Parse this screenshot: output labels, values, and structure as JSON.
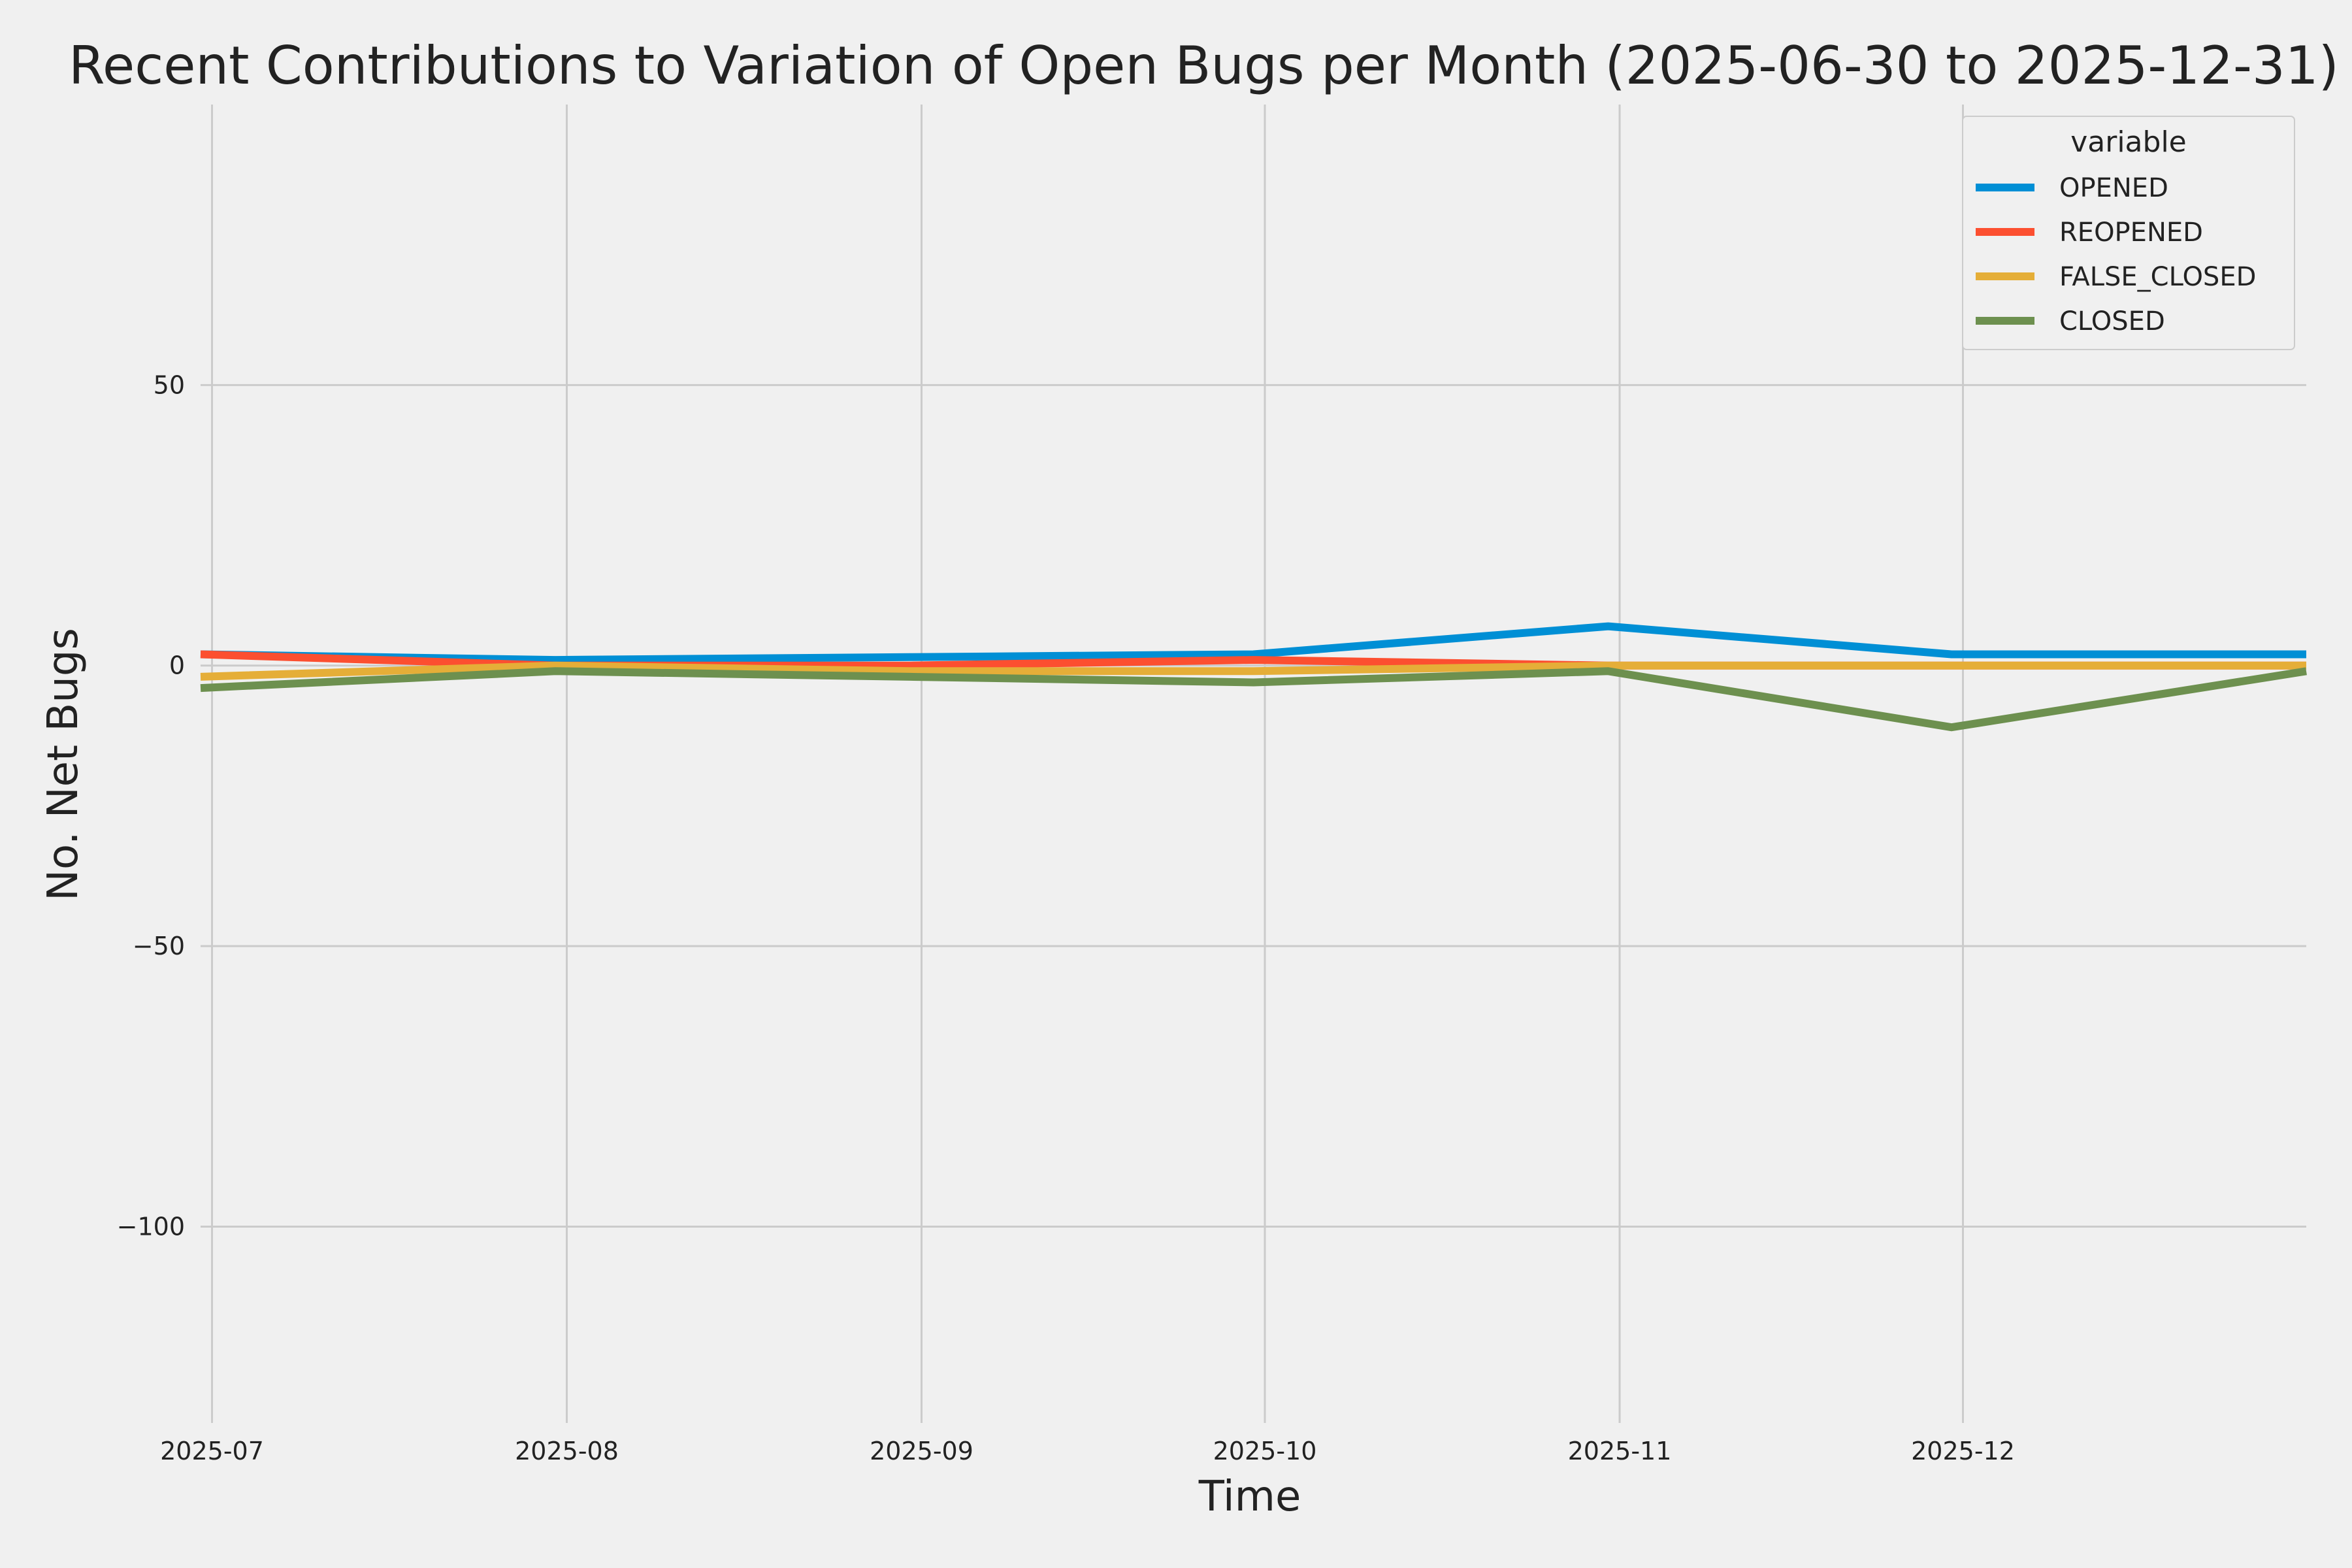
{
  "chart_data": {
    "type": "line",
    "title": "Recent Contributions to Variation of Open Bugs per Month (2025-06-30 to 2025-12-31)",
    "xlabel": "Time",
    "ylabel": "No. Net Bugs",
    "x": [
      "2025-06-30",
      "2025-07-31",
      "2025-08-31",
      "2025-09-30",
      "2025-10-31",
      "2025-11-30",
      "2025-12-31"
    ],
    "xlim": [
      "2025-06-30",
      "2025-12-31"
    ],
    "ylim": [
      -135,
      100
    ],
    "x_ticks": [
      "2025-07",
      "2025-08",
      "2025-09",
      "2025-10",
      "2025-11",
      "2025-12"
    ],
    "y_ticks": [
      50,
      0,
      -50,
      -100
    ],
    "y_tick_labels": [
      "50",
      "0",
      "−50",
      "−100"
    ],
    "grid": true,
    "legend": {
      "title": "variable",
      "position": "top-right"
    },
    "series": [
      {
        "name": "OPENED",
        "color": "#008fd5",
        "values": [
          2,
          1,
          1.5,
          2,
          7,
          2,
          2
        ]
      },
      {
        "name": "REOPENED",
        "color": "#fc4f30",
        "values": [
          2,
          0,
          0,
          1,
          0,
          0,
          0
        ]
      },
      {
        "name": "FALSE_CLOSED",
        "color": "#e5ae38",
        "values": [
          -2,
          0,
          -1,
          -1,
          0,
          0,
          0
        ]
      },
      {
        "name": "CLOSED",
        "color": "#6d904f",
        "values": [
          -4,
          -1,
          -2,
          -3,
          -1,
          -11,
          -1
        ]
      }
    ]
  }
}
